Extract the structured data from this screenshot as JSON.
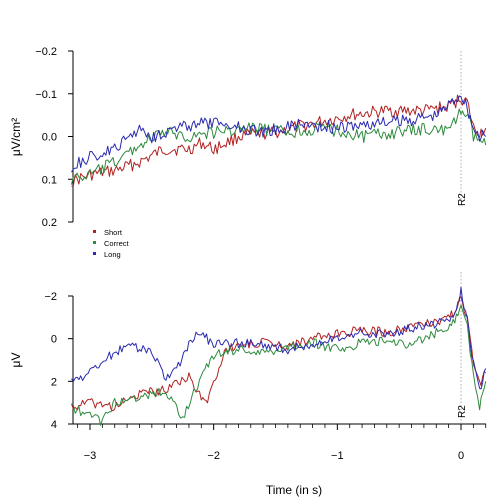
{
  "colors": {
    "Short": "#b22222",
    "Correct": "#2e8b3e",
    "Long": "#2b2bb0"
  },
  "chart_data": [
    {
      "type": "line",
      "panel": "top",
      "ylabel": "μV/cm²",
      "xlabel": "",
      "ylim": [
        0.2,
        -0.2
      ],
      "yticks": [
        -0.2,
        -0.1,
        0.0,
        0.1,
        0.2
      ],
      "ytick_labels": [
        "−0.2",
        "−0.1",
        "0.0",
        "0.1",
        "0.2"
      ],
      "xlim": [
        -3.15,
        0.2
      ],
      "marker": {
        "x": 0,
        "label": "R2"
      },
      "legend": {
        "placement": "bottom-left",
        "entries": [
          "Short",
          "Correct",
          "Long"
        ]
      },
      "series": [
        {
          "name": "Short",
          "color": "#b22222",
          "points": [
            [
              -3.15,
              0.105
            ],
            [
              -3.0,
              0.09
            ],
            [
              -2.8,
              0.08
            ],
            [
              -2.6,
              0.06
            ],
            [
              -2.4,
              0.03
            ],
            [
              -2.2,
              0.03
            ],
            [
              -2.1,
              0.015
            ],
            [
              -2.0,
              0.03
            ],
            [
              -1.8,
              0.0
            ],
            [
              -1.5,
              -0.01
            ],
            [
              -1.2,
              -0.03
            ],
            [
              -0.9,
              -0.05
            ],
            [
              -0.6,
              -0.06
            ],
            [
              -0.3,
              -0.06
            ],
            [
              -0.1,
              -0.07
            ],
            [
              0.0,
              -0.09
            ],
            [
              0.05,
              -0.08
            ],
            [
              0.1,
              -0.02
            ],
            [
              0.15,
              -0.01
            ],
            [
              0.2,
              -0.02
            ]
          ]
        },
        {
          "name": "Correct",
          "color": "#2e8b3e",
          "points": [
            [
              -3.15,
              0.1
            ],
            [
              -3.0,
              0.09
            ],
            [
              -2.8,
              0.06
            ],
            [
              -2.6,
              0.02
            ],
            [
              -2.4,
              -0.01
            ],
            [
              -2.2,
              0.0
            ],
            [
              -2.0,
              -0.01
            ],
            [
              -1.7,
              -0.02
            ],
            [
              -1.4,
              -0.01
            ],
            [
              -1.1,
              -0.02
            ],
            [
              -0.8,
              0.0
            ],
            [
              -0.5,
              -0.01
            ],
            [
              -0.2,
              -0.02
            ],
            [
              -0.1,
              -0.01
            ],
            [
              0.0,
              -0.06
            ],
            [
              0.05,
              -0.05
            ],
            [
              0.1,
              0.0
            ],
            [
              0.15,
              0.01
            ],
            [
              0.2,
              0.02
            ]
          ]
        },
        {
          "name": "Long",
          "color": "#2b2bb0",
          "points": [
            [
              -3.15,
              0.07
            ],
            [
              -3.0,
              0.05
            ],
            [
              -2.8,
              0.03
            ],
            [
              -2.6,
              -0.02
            ],
            [
              -2.5,
              0.0
            ],
            [
              -2.3,
              -0.02
            ],
            [
              -2.1,
              -0.03
            ],
            [
              -1.9,
              -0.03
            ],
            [
              -1.6,
              -0.01
            ],
            [
              -1.3,
              -0.03
            ],
            [
              -1.0,
              -0.02
            ],
            [
              -0.7,
              -0.03
            ],
            [
              -0.4,
              -0.04
            ],
            [
              -0.2,
              -0.05
            ],
            [
              0.0,
              -0.1
            ],
            [
              0.05,
              -0.07
            ],
            [
              0.1,
              -0.02
            ],
            [
              0.15,
              0.0
            ],
            [
              0.2,
              0.0
            ]
          ]
        }
      ]
    },
    {
      "type": "line",
      "panel": "bottom",
      "ylabel": "μV",
      "xlabel": "Time (in s)",
      "ylim": [
        4,
        -2.5
      ],
      "yticks": [
        -2,
        0,
        2,
        4
      ],
      "ytick_labels": [
        "−2",
        "0",
        "2",
        "4"
      ],
      "xlim": [
        -3.15,
        0.2
      ],
      "xticks": [
        -3,
        -2,
        -1,
        0
      ],
      "xtick_labels": [
        "−3",
        "−2",
        "−1",
        "0"
      ],
      "marker": {
        "x": 0,
        "label": "R2"
      },
      "series": [
        {
          "name": "Short",
          "color": "#b22222",
          "points": [
            [
              -3.15,
              3.2
            ],
            [
              -3.0,
              3.0
            ],
            [
              -2.8,
              3.2
            ],
            [
              -2.6,
              2.6
            ],
            [
              -2.4,
              2.4
            ],
            [
              -2.3,
              2.0
            ],
            [
              -2.2,
              1.8
            ],
            [
              -2.1,
              2.8
            ],
            [
              -2.05,
              3.0
            ],
            [
              -2.0,
              2.0
            ],
            [
              -1.9,
              0.5
            ],
            [
              -1.8,
              0.3
            ],
            [
              -1.6,
              0.2
            ],
            [
              -1.4,
              0.3
            ],
            [
              -1.2,
              0.0
            ],
            [
              -1.0,
              -0.2
            ],
            [
              -0.8,
              -0.4
            ],
            [
              -0.6,
              -0.3
            ],
            [
              -0.4,
              -0.6
            ],
            [
              -0.2,
              -0.8
            ],
            [
              -0.05,
              -1.2
            ],
            [
              0.0,
              -1.9
            ],
            [
              0.05,
              -1.0
            ],
            [
              0.1,
              1.0
            ],
            [
              0.15,
              2.2
            ],
            [
              0.2,
              1.6
            ]
          ]
        },
        {
          "name": "Correct",
          "color": "#2e8b3e",
          "points": [
            [
              -3.15,
              3.2
            ],
            [
              -3.0,
              3.6
            ],
            [
              -2.9,
              3.9
            ],
            [
              -2.8,
              3.0
            ],
            [
              -2.6,
              2.7
            ],
            [
              -2.5,
              2.6
            ],
            [
              -2.4,
              2.5
            ],
            [
              -2.3,
              3.2
            ],
            [
              -2.25,
              3.7
            ],
            [
              -2.1,
              1.8
            ],
            [
              -2.0,
              0.8
            ],
            [
              -1.8,
              0.5
            ],
            [
              -1.6,
              0.7
            ],
            [
              -1.4,
              0.4
            ],
            [
              -1.2,
              0.2
            ],
            [
              -1.0,
              0.5
            ],
            [
              -0.8,
              0.2
            ],
            [
              -0.6,
              0.1
            ],
            [
              -0.4,
              0.3
            ],
            [
              -0.2,
              -0.3
            ],
            [
              -0.05,
              -0.8
            ],
            [
              0.0,
              -1.8
            ],
            [
              0.05,
              -0.5
            ],
            [
              0.1,
              1.8
            ],
            [
              0.15,
              3.2
            ],
            [
              0.2,
              2.0
            ]
          ]
        },
        {
          "name": "Long",
          "color": "#2b2bb0",
          "points": [
            [
              -3.15,
              2.0
            ],
            [
              -3.0,
              1.6
            ],
            [
              -2.9,
              1.0
            ],
            [
              -2.8,
              0.7
            ],
            [
              -2.7,
              0.2
            ],
            [
              -2.6,
              0.5
            ],
            [
              -2.5,
              0.6
            ],
            [
              -2.4,
              1.8
            ],
            [
              -2.3,
              1.5
            ],
            [
              -2.2,
              0.2
            ],
            [
              -2.1,
              -0.3
            ],
            [
              -2.0,
              0.3
            ],
            [
              -1.8,
              0.2
            ],
            [
              -1.6,
              0.3
            ],
            [
              -1.4,
              0.5
            ],
            [
              -1.2,
              0.3
            ],
            [
              -1.0,
              0.0
            ],
            [
              -0.8,
              -0.3
            ],
            [
              -0.6,
              -0.2
            ],
            [
              -0.4,
              -0.5
            ],
            [
              -0.2,
              -0.7
            ],
            [
              -0.05,
              -1.0
            ],
            [
              0.0,
              -2.3
            ],
            [
              0.05,
              -0.8
            ],
            [
              0.1,
              1.2
            ],
            [
              0.15,
              2.4
            ],
            [
              0.2,
              1.4
            ]
          ]
        }
      ]
    }
  ]
}
